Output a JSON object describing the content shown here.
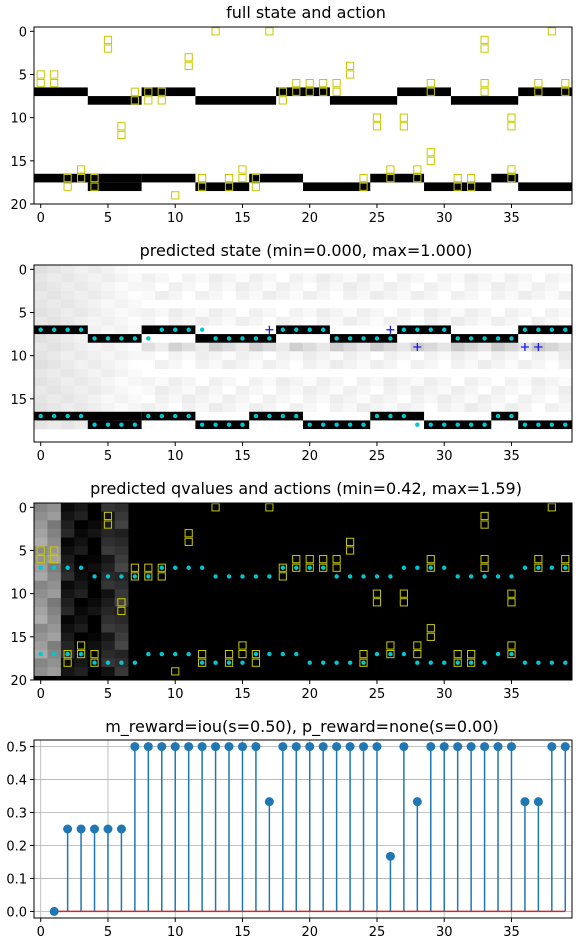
{
  "chart_data": [
    {
      "type": "heatmap",
      "title": "full state and action",
      "xlim": [
        -0.5,
        39.5
      ],
      "ylim": [
        20,
        -0.5
      ],
      "xticks": [
        0,
        5,
        10,
        15,
        20,
        25,
        30,
        35
      ],
      "yticks": [
        0,
        5,
        10,
        15,
        20
      ],
      "background": "#ffffff",
      "bar_color": "#000000",
      "marker_color": "#c8c800",
      "state_segments": [
        {
          "x0": 0,
          "x1": 3,
          "y": 7
        },
        {
          "x0": 4,
          "x1": 7,
          "y": 8
        },
        {
          "x0": 8,
          "x1": 11,
          "y": 7
        },
        {
          "x0": 12,
          "x1": 17,
          "y": 8
        },
        {
          "x0": 18,
          "x1": 21,
          "y": 7
        },
        {
          "x0": 22,
          "x1": 26,
          "y": 8
        },
        {
          "x0": 27,
          "x1": 30,
          "y": 7
        },
        {
          "x0": 31,
          "x1": 35,
          "y": 8
        },
        {
          "x0": 36,
          "x1": 39,
          "y": 7
        },
        {
          "x0": 0,
          "x1": 7,
          "y": 17
        },
        {
          "x0": 4,
          "x1": 7,
          "y": 18
        },
        {
          "x0": 8,
          "x1": 11,
          "y": 17
        },
        {
          "x0": 12,
          "x1": 15,
          "y": 18
        },
        {
          "x0": 16,
          "x1": 19,
          "y": 17
        },
        {
          "x0": 20,
          "x1": 24,
          "y": 18
        },
        {
          "x0": 25,
          "x1": 28,
          "y": 17
        },
        {
          "x0": 29,
          "x1": 33,
          "y": 18
        },
        {
          "x0": 34,
          "x1": 35,
          "y": 17
        },
        {
          "x0": 36,
          "x1": 39,
          "y": 18
        }
      ],
      "actions": [
        [
          0,
          5
        ],
        [
          0,
          6
        ],
        [
          1,
          5
        ],
        [
          1,
          6
        ],
        [
          5,
          1
        ],
        [
          5,
          2
        ],
        [
          6,
          11
        ],
        [
          6,
          12
        ],
        [
          11,
          3
        ],
        [
          11,
          4
        ],
        [
          13,
          0
        ],
        [
          17,
          0
        ],
        [
          23,
          4
        ],
        [
          23,
          5
        ],
        [
          25,
          10
        ],
        [
          25,
          11
        ],
        [
          27,
          10
        ],
        [
          27,
          11
        ],
        [
          33,
          1
        ],
        [
          33,
          2
        ],
        [
          35,
          10
        ],
        [
          35,
          11
        ],
        [
          38,
          0
        ],
        [
          7,
          7
        ],
        [
          7,
          8
        ],
        [
          8,
          7
        ],
        [
          8,
          8
        ],
        [
          9,
          7
        ],
        [
          9,
          8
        ],
        [
          18,
          7
        ],
        [
          18,
          8
        ],
        [
          19,
          6
        ],
        [
          19,
          7
        ],
        [
          20,
          6
        ],
        [
          20,
          7
        ],
        [
          21,
          6
        ],
        [
          21,
          7
        ],
        [
          22,
          6
        ],
        [
          22,
          7
        ],
        [
          29,
          6
        ],
        [
          29,
          7
        ],
        [
          33,
          6
        ],
        [
          33,
          7
        ],
        [
          37,
          6
        ],
        [
          37,
          7
        ],
        [
          39,
          6
        ],
        [
          39,
          7
        ],
        [
          2,
          17
        ],
        [
          2,
          18
        ],
        [
          3,
          16
        ],
        [
          3,
          17
        ],
        [
          4,
          17
        ],
        [
          4,
          18
        ],
        [
          10,
          19
        ],
        [
          12,
          17
        ],
        [
          12,
          18
        ],
        [
          14,
          17
        ],
        [
          14,
          18
        ],
        [
          15,
          16
        ],
        [
          15,
          17
        ],
        [
          16,
          17
        ],
        [
          16,
          18
        ],
        [
          24,
          17
        ],
        [
          24,
          18
        ],
        [
          26,
          16
        ],
        [
          26,
          17
        ],
        [
          28,
          16
        ],
        [
          28,
          17
        ],
        [
          29,
          14
        ],
        [
          29,
          15
        ],
        [
          31,
          17
        ],
        [
          31,
          18
        ],
        [
          32,
          17
        ],
        [
          32,
          18
        ],
        [
          35,
          16
        ],
        [
          35,
          17
        ]
      ]
    },
    {
      "type": "heatmap",
      "title": "predicted state (min=0.000, max=1.000)",
      "xlim": [
        -0.5,
        39.5
      ],
      "ylim": [
        20,
        -0.5
      ],
      "xticks": [
        0,
        5,
        10,
        15,
        20,
        25,
        30,
        35
      ],
      "yticks": [
        0,
        5,
        10,
        15
      ],
      "vmin": 0.0,
      "vmax": 1.0,
      "colormap": "gray_r",
      "dot_color": "#00c8d0",
      "plus_color": "#1a1aee",
      "dots": [
        [
          0,
          7
        ],
        [
          1,
          7
        ],
        [
          2,
          7
        ],
        [
          3,
          7
        ],
        [
          4,
          8
        ],
        [
          5,
          8
        ],
        [
          6,
          8
        ],
        [
          7,
          8
        ],
        [
          8,
          8
        ],
        [
          9,
          7
        ],
        [
          10,
          7
        ],
        [
          11,
          7
        ],
        [
          12,
          7
        ],
        [
          13,
          8
        ],
        [
          14,
          8
        ],
        [
          15,
          8
        ],
        [
          16,
          8
        ],
        [
          17,
          8
        ],
        [
          18,
          7
        ],
        [
          19,
          7
        ],
        [
          20,
          7
        ],
        [
          21,
          7
        ],
        [
          22,
          8
        ],
        [
          23,
          8
        ],
        [
          24,
          8
        ],
        [
          25,
          8
        ],
        [
          26,
          8
        ],
        [
          27,
          7
        ],
        [
          28,
          7
        ],
        [
          29,
          7
        ],
        [
          30,
          7
        ],
        [
          31,
          8
        ],
        [
          32,
          8
        ],
        [
          33,
          8
        ],
        [
          34,
          8
        ],
        [
          35,
          8
        ],
        [
          36,
          7
        ],
        [
          37,
          7
        ],
        [
          38,
          7
        ],
        [
          39,
          7
        ],
        [
          0,
          17
        ],
        [
          1,
          17
        ],
        [
          2,
          17
        ],
        [
          3,
          17
        ],
        [
          4,
          18
        ],
        [
          5,
          18
        ],
        [
          6,
          18
        ],
        [
          7,
          18
        ],
        [
          8,
          17
        ],
        [
          9,
          17
        ],
        [
          10,
          17
        ],
        [
          11,
          17
        ],
        [
          12,
          18
        ],
        [
          13,
          18
        ],
        [
          14,
          18
        ],
        [
          15,
          18
        ],
        [
          16,
          17
        ],
        [
          17,
          17
        ],
        [
          18,
          17
        ],
        [
          19,
          17
        ],
        [
          20,
          18
        ],
        [
          21,
          18
        ],
        [
          22,
          18
        ],
        [
          23,
          18
        ],
        [
          24,
          18
        ],
        [
          25,
          17
        ],
        [
          26,
          17
        ],
        [
          27,
          17
        ],
        [
          28,
          18
        ],
        [
          29,
          18
        ],
        [
          30,
          18
        ],
        [
          31,
          18
        ],
        [
          32,
          18
        ],
        [
          33,
          18
        ],
        [
          34,
          17
        ],
        [
          35,
          17
        ],
        [
          36,
          18
        ],
        [
          37,
          18
        ],
        [
          38,
          18
        ],
        [
          39,
          18
        ]
      ],
      "plus_marks": [
        [
          17,
          7
        ],
        [
          26,
          7
        ],
        [
          28,
          9
        ],
        [
          36,
          9
        ],
        [
          37,
          9
        ]
      ]
    },
    {
      "type": "heatmap",
      "title": "predicted qvalues and actions (min=0.42, max=1.59)",
      "xlim": [
        -0.5,
        39.5
      ],
      "ylim": [
        20,
        -0.5
      ],
      "xticks": [
        0,
        5,
        10,
        15,
        20,
        25,
        30,
        35
      ],
      "yticks": [
        0,
        5,
        10,
        15,
        20
      ],
      "vmin": 0.42,
      "vmax": 1.59,
      "colormap": "gray",
      "column_levels": [
        0.6,
        0.55,
        0.1,
        0.05,
        0.0,
        0.15,
        0.2
      ],
      "marker_color": "#c8c800",
      "dot_color": "#00c8d0"
    },
    {
      "type": "stem",
      "title": "m_reward=iou(s=0.50), p_reward=none(s=0.00)",
      "xlim": [
        -0.5,
        39.5
      ],
      "ylim": [
        -0.02,
        0.52
      ],
      "xticks": [
        0,
        5,
        10,
        15,
        20,
        25,
        30,
        35
      ],
      "yticks": [
        0.0,
        0.1,
        0.2,
        0.3,
        0.4,
        0.5
      ],
      "ytick_labels": [
        "0.0",
        "0.1",
        "0.2",
        "0.3",
        "0.4",
        "0.5"
      ],
      "grid": true,
      "stem_color": "#1f77b4",
      "baseline_color": "#d62728",
      "x": [
        1,
        2,
        3,
        4,
        5,
        6,
        7,
        8,
        9,
        10,
        11,
        12,
        13,
        14,
        15,
        16,
        17,
        18,
        19,
        20,
        21,
        22,
        23,
        24,
        25,
        26,
        27,
        28,
        29,
        30,
        31,
        32,
        33,
        34,
        35,
        36,
        37,
        38,
        39
      ],
      "values": [
        0.0,
        0.25,
        0.25,
        0.25,
        0.25,
        0.25,
        0.5,
        0.5,
        0.5,
        0.5,
        0.5,
        0.5,
        0.5,
        0.5,
        0.5,
        0.5,
        0.333,
        0.5,
        0.5,
        0.5,
        0.5,
        0.5,
        0.5,
        0.5,
        0.5,
        0.167,
        0.5,
        0.333,
        0.5,
        0.5,
        0.5,
        0.5,
        0.5,
        0.5,
        0.5,
        0.333,
        0.333,
        0.5,
        0.5
      ]
    }
  ]
}
